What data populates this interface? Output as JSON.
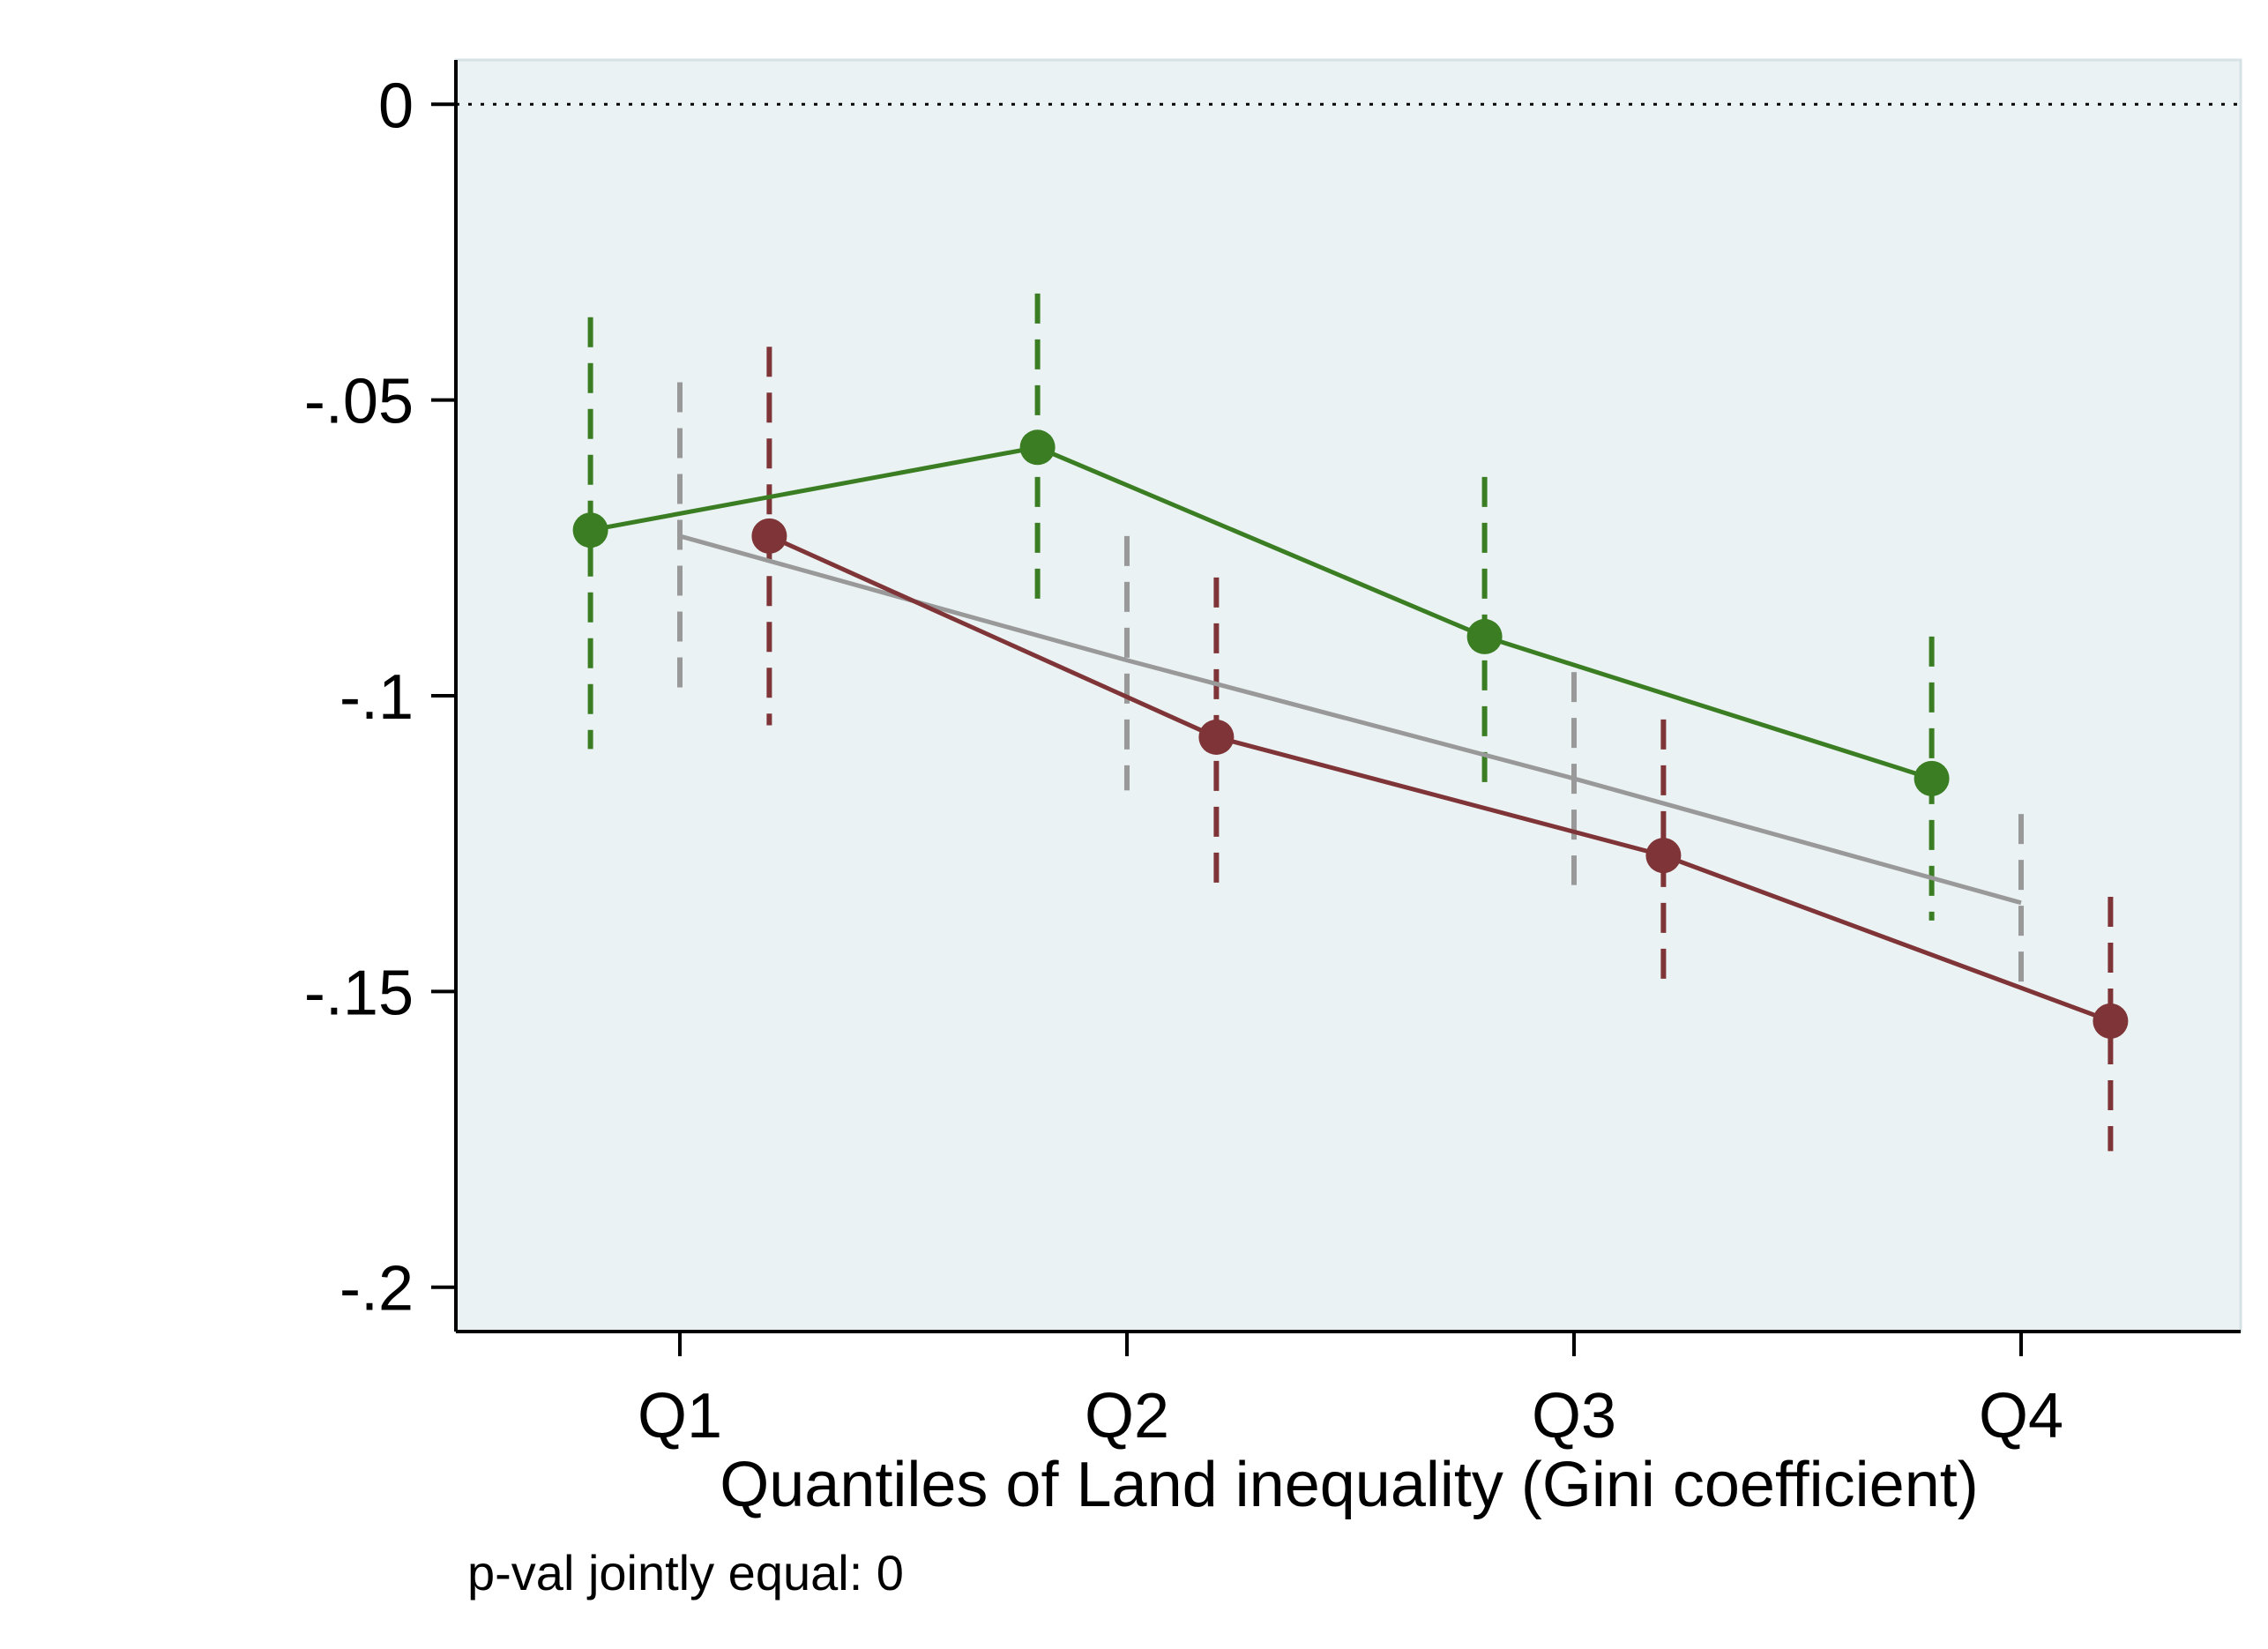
{
  "chart_data": {
    "type": "line",
    "xlabel": "Quantiles of Land inequality (Gini coefficient)",
    "ylabel": "",
    "note": "p-val jointly equal: 0",
    "categories": [
      "Q1",
      "Q2",
      "Q3",
      "Q4"
    ],
    "yticks": [
      0,
      -0.05,
      -0.1,
      -0.15,
      -0.2
    ],
    "ytick_labels": [
      "0",
      "-.05",
      "-.1",
      "-.15",
      "-.2"
    ],
    "ylim": [
      -0.2075,
      0.0075
    ],
    "reference_line": 0,
    "grid": false,
    "series": [
      {
        "color": "#3a7d22",
        "marker": true,
        "x_offset": -0.2,
        "values": [
          -0.072,
          -0.058,
          -0.09,
          -0.114
        ],
        "ci_lower": [
          -0.109,
          -0.084,
          -0.117,
          -0.138
        ],
        "ci_upper": [
          -0.036,
          -0.032,
          -0.063,
          -0.09
        ]
      },
      {
        "color": "#999999",
        "marker": false,
        "x_offset": 0,
        "values": [
          -0.073,
          -0.094,
          -0.114,
          -0.135
        ],
        "ci_lower": [
          -0.099,
          -0.116,
          -0.132,
          -0.151
        ],
        "ci_upper": [
          -0.047,
          -0.073,
          -0.096,
          -0.12
        ]
      },
      {
        "color": "#7f3537",
        "marker": true,
        "x_offset": 0.2,
        "values": [
          -0.073,
          -0.107,
          -0.127,
          -0.155
        ],
        "ci_lower": [
          -0.105,
          -0.134,
          -0.15,
          -0.177
        ],
        "ci_upper": [
          -0.041,
          -0.08,
          -0.104,
          -0.134
        ]
      }
    ]
  }
}
